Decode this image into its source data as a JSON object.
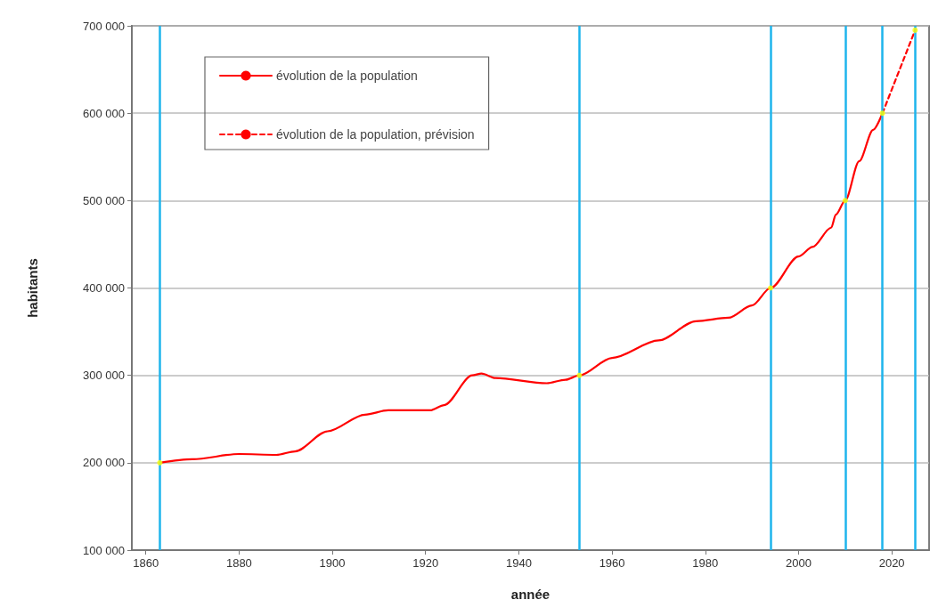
{
  "chart_data": {
    "type": "line",
    "xlabel": "année",
    "ylabel": "habitants",
    "xlim": [
      1857,
      2028
    ],
    "xticks": [
      1860,
      1880,
      1900,
      1920,
      1940,
      1960,
      1980,
      2000,
      2020
    ],
    "ylim": [
      100000,
      700000
    ],
    "yticks": [
      {
        "value": 100000,
        "label": "100 000"
      },
      {
        "value": 200000,
        "label": "200 000"
      },
      {
        "value": 300000,
        "label": "300 000"
      },
      {
        "value": 400000,
        "label": "400 000"
      },
      {
        "value": 500000,
        "label": "500 000"
      },
      {
        "value": 600000,
        "label": "600 000"
      },
      {
        "value": 700000,
        "label": "700 000"
      }
    ],
    "grid": "y",
    "legend": "top left",
    "marker": "none",
    "series": [
      {
        "name": "évolution de la population",
        "color": "#ff0000",
        "line_style": "solid",
        "x": [
          1863,
          1870,
          1880,
          1888,
          1892,
          1899,
          1907,
          1912,
          1921,
          1924,
          1930,
          1932,
          1935,
          1946,
          1950,
          1953,
          1960,
          1970,
          1978,
          1985,
          1990,
          1994,
          2000,
          2003,
          2007,
          2008,
          2010,
          2013,
          2016,
          2018
        ],
        "values": [
          200000,
          204000,
          210000,
          209000,
          213000,
          236000,
          255000,
          260000,
          260000,
          266000,
          300000,
          302000,
          297000,
          291000,
          295000,
          300000,
          320000,
          340000,
          362000,
          366000,
          380000,
          400000,
          436000,
          447000,
          469000,
          484000,
          500000,
          545000,
          581000,
          600000
        ]
      },
      {
        "name": "évolution de la population, prévision",
        "color": "#ff0000",
        "line_style": "dashed",
        "x": [
          2018,
          2025
        ],
        "values": [
          600000,
          695000
        ]
      },
      {
        "type": "scatter",
        "color": "#ffff00",
        "marker": "circle",
        "x": [
          1863,
          1953,
          1994,
          2010,
          2018,
          2025
        ],
        "values": [
          200000,
          300000,
          400000,
          500000,
          600000,
          695000
        ]
      }
    ],
    "ref_lines": [
      {
        "axis": "x",
        "value": 1863,
        "color": "#1eb4ec"
      },
      {
        "axis": "x",
        "value": 1953,
        "color": "#1eb4ec"
      },
      {
        "axis": "x",
        "value": 1994,
        "color": "#1eb4ec"
      },
      {
        "axis": "x",
        "value": 2010,
        "color": "#1eb4ec"
      },
      {
        "axis": "x",
        "value": 2018,
        "color": "#1eb4ec"
      },
      {
        "axis": "x",
        "value": 2025,
        "color": "#1eb4ec"
      }
    ]
  }
}
